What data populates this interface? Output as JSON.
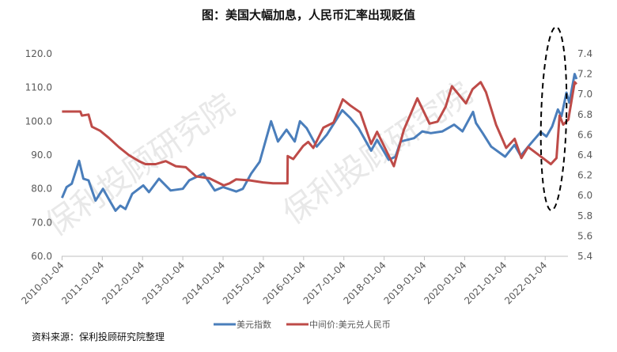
{
  "title": "图：美国大幅加息，人民币汇率出现贬值",
  "source": "资料来源：保利投顾研究院整理",
  "watermark": "保利投顾研究院",
  "chart_data": {
    "type": "line",
    "title": "图：美国大幅加息，人民币汇率出现贬值",
    "x_ticks": [
      "2010-01-04",
      "2011-01-04",
      "2012-01-04",
      "2013-01-04",
      "2014-01-04",
      "2015-01-04",
      "2016-01-04",
      "2017-01-04",
      "2018-01-04",
      "2019-01-04",
      "2020-01-04",
      "2021-01-04",
      "2022-01-04"
    ],
    "y_left": {
      "range": [
        60,
        120
      ],
      "ticks": [
        "60.0",
        "70.0",
        "80.0",
        "90.0",
        "100.0",
        "110.0",
        "120.0"
      ]
    },
    "y_right": {
      "range": [
        5.4,
        7.4
      ],
      "ticks": [
        "5.4",
        "5.6",
        "5.8",
        "6.0",
        "6.2",
        "6.4",
        "6.6",
        "6.8",
        "7.0",
        "7.2",
        "7.4"
      ]
    },
    "grid": false,
    "legend_position": "bottom",
    "annotation": "dashed ellipse highlighting 2022",
    "series": [
      {
        "name": "美元指数",
        "axis": "left",
        "color": "#4a7ebb",
        "points": [
          [
            "2010-01-04",
            77.3
          ],
          [
            "2010-02-15",
            80.5
          ],
          [
            "2010-04-01",
            81.5
          ],
          [
            "2010-06-07",
            88.3
          ],
          [
            "2010-07-15",
            83
          ],
          [
            "2010-09-01",
            82.5
          ],
          [
            "2010-11-04",
            76.5
          ],
          [
            "2011-01-10",
            80
          ],
          [
            "2011-03-01",
            77
          ],
          [
            "2011-05-02",
            73.5
          ],
          [
            "2011-06-15",
            75
          ],
          [
            "2011-08-01",
            74
          ],
          [
            "2011-10-01",
            78.5
          ],
          [
            "2012-01-10",
            81
          ],
          [
            "2012-03-01",
            79
          ],
          [
            "2012-06-01",
            83
          ],
          [
            "2012-09-15",
            79.5
          ],
          [
            "2013-01-04",
            80
          ],
          [
            "2013-03-01",
            82.5
          ],
          [
            "2013-07-08",
            84.5
          ],
          [
            "2013-10-20",
            79.5
          ],
          [
            "2014-01-04",
            80.5
          ],
          [
            "2014-05-01",
            79.2
          ],
          [
            "2014-07-01",
            80
          ],
          [
            "2014-09-15",
            84.5
          ],
          [
            "2014-12-01",
            88
          ],
          [
            "2015-03-13",
            100
          ],
          [
            "2015-05-15",
            94
          ],
          [
            "2015-08-01",
            97.5
          ],
          [
            "2015-10-15",
            94
          ],
          [
            "2015-12-01",
            100
          ],
          [
            "2016-02-01",
            98
          ],
          [
            "2016-05-01",
            92.5
          ],
          [
            "2016-08-01",
            96
          ],
          [
            "2016-12-20",
            103.3
          ],
          [
            "2017-03-01",
            101
          ],
          [
            "2017-05-15",
            98
          ],
          [
            "2017-09-08",
            91.3
          ],
          [
            "2017-11-01",
            94.5
          ],
          [
            "2018-02-15",
            88.6
          ],
          [
            "2018-04-15",
            89.5
          ],
          [
            "2018-06-01",
            94
          ],
          [
            "2018-10-01",
            95
          ],
          [
            "2018-12-15",
            97
          ],
          [
            "2019-03-01",
            96.5
          ],
          [
            "2019-06-15",
            97
          ],
          [
            "2019-09-30",
            99
          ],
          [
            "2019-12-15",
            97
          ],
          [
            "2020-03-19",
            102.8
          ],
          [
            "2020-04-15",
            99.5
          ],
          [
            "2020-06-15",
            96.5
          ],
          [
            "2020-09-01",
            92.5
          ],
          [
            "2021-01-06",
            89.5
          ],
          [
            "2021-03-30",
            93
          ],
          [
            "2021-05-25",
            89.8
          ],
          [
            "2021-08-15",
            93
          ],
          [
            "2021-11-24",
            96.8
          ],
          [
            "2022-01-15",
            95.5
          ],
          [
            "2022-03-07",
            98.5
          ],
          [
            "2022-04-28",
            103.5
          ],
          [
            "2022-05-30",
            101.5
          ],
          [
            "2022-07-14",
            108.5
          ],
          [
            "2022-08-10",
            105.5
          ],
          [
            "2022-09-27",
            114
          ],
          [
            "2022-10-15",
            112.5
          ]
        ]
      },
      {
        "name": "中间价:美元兑人民币",
        "axis": "right",
        "color": "#be4b48",
        "points": [
          [
            "2010-01-04",
            6.83
          ],
          [
            "2010-06-18",
            6.83
          ],
          [
            "2010-07-01",
            6.79
          ],
          [
            "2010-09-01",
            6.8
          ],
          [
            "2010-10-01",
            6.68
          ],
          [
            "2010-12-15",
            6.64
          ],
          [
            "2011-03-01",
            6.57
          ],
          [
            "2011-06-01",
            6.48
          ],
          [
            "2011-09-01",
            6.4
          ],
          [
            "2011-12-01",
            6.34
          ],
          [
            "2012-02-01",
            6.31
          ],
          [
            "2012-05-01",
            6.31
          ],
          [
            "2012-08-01",
            6.34
          ],
          [
            "2012-11-01",
            6.29
          ],
          [
            "2013-02-01",
            6.28
          ],
          [
            "2013-05-01",
            6.19
          ],
          [
            "2013-09-01",
            6.17
          ],
          [
            "2014-01-10",
            6.1
          ],
          [
            "2014-03-01",
            6.12
          ],
          [
            "2014-05-01",
            6.16
          ],
          [
            "2014-09-01",
            6.15
          ],
          [
            "2015-01-01",
            6.13
          ],
          [
            "2015-04-01",
            6.12
          ],
          [
            "2015-08-10",
            6.12
          ],
          [
            "2015-08-12",
            6.39
          ],
          [
            "2015-10-01",
            6.36
          ],
          [
            "2015-12-31",
            6.49
          ],
          [
            "2016-02-15",
            6.53
          ],
          [
            "2016-04-01",
            6.47
          ],
          [
            "2016-07-01",
            6.67
          ],
          [
            "2016-10-01",
            6.72
          ],
          [
            "2016-12-25",
            6.95
          ],
          [
            "2017-03-01",
            6.89
          ],
          [
            "2017-06-01",
            6.82
          ],
          [
            "2017-09-08",
            6.51
          ],
          [
            "2017-11-01",
            6.63
          ],
          [
            "2018-04-01",
            6.29
          ],
          [
            "2018-07-01",
            6.65
          ],
          [
            "2018-11-01",
            6.96
          ],
          [
            "2019-02-20",
            6.71
          ],
          [
            "2019-05-01",
            6.73
          ],
          [
            "2019-07-15",
            6.88
          ],
          [
            "2019-09-10",
            7.08
          ],
          [
            "2020-01-15",
            6.91
          ],
          [
            "2020-03-15",
            7.05
          ],
          [
            "2020-05-28",
            7.12
          ],
          [
            "2020-07-15",
            7.02
          ],
          [
            "2020-10-15",
            6.7
          ],
          [
            "2021-01-15",
            6.47
          ],
          [
            "2021-04-01",
            6.56
          ],
          [
            "2021-06-01",
            6.37
          ],
          [
            "2021-08-01",
            6.48
          ],
          [
            "2021-12-01",
            6.38
          ],
          [
            "2022-02-25",
            6.31
          ],
          [
            "2022-04-15",
            6.37
          ],
          [
            "2022-05-13",
            6.79
          ],
          [
            "2022-06-15",
            6.7
          ],
          [
            "2022-08-01",
            6.75
          ],
          [
            "2022-09-28",
            7.12
          ],
          [
            "2022-10-15",
            7.1
          ]
        ]
      }
    ]
  }
}
